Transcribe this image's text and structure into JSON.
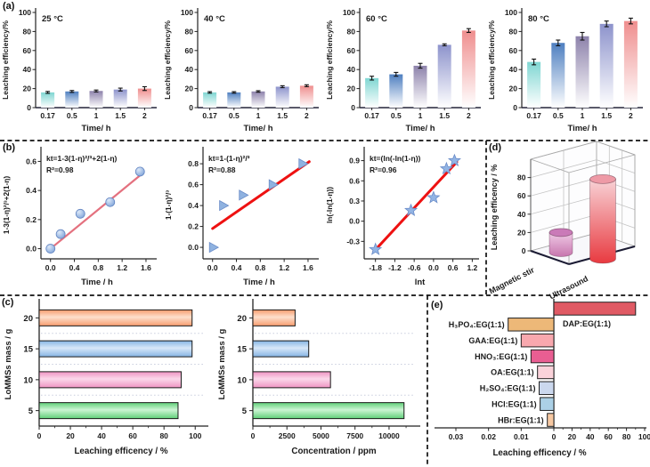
{
  "figure": {
    "panel_labels": {
      "a": "(a)",
      "b": "(b)",
      "c": "(c)",
      "d": "(d)",
      "e": "(e)"
    }
  },
  "chart_data": [
    {
      "panel": "a",
      "type": "bar",
      "render": "vbar",
      "title": "25 °C",
      "xlabel": "Time/ h",
      "ylabel": "Leaching efficiency/%",
      "categories": [
        "0.17",
        "0.5",
        "1",
        "1.5",
        "2"
      ],
      "values": [
        16,
        17,
        17.5,
        19,
        20
      ],
      "errors": [
        1,
        1,
        1,
        1.5,
        2
      ],
      "ylim": [
        0,
        100
      ],
      "yticks": [
        0,
        20,
        40,
        60,
        80,
        100
      ],
      "bar_colors": [
        "#7fd6d2",
        "#4e7fc0",
        "#8d82ab",
        "#8d93cc",
        "#ef8e8e"
      ]
    },
    {
      "panel": "a",
      "type": "bar",
      "render": "vbar",
      "title": "40 °C",
      "xlabel": "Time/ h",
      "ylabel": "Leaching efficiency/%",
      "categories": [
        "0.17",
        "0.5",
        "1",
        "1.5",
        "2"
      ],
      "values": [
        16,
        16,
        17,
        22,
        23
      ],
      "errors": [
        0.8,
        0.8,
        0.8,
        1,
        1
      ],
      "ylim": [
        0,
        100
      ],
      "yticks": [
        0,
        20,
        40,
        60,
        80,
        100
      ],
      "bar_colors": [
        "#7fd6d2",
        "#4e7fc0",
        "#8d82ab",
        "#8d93cc",
        "#ef8e8e"
      ]
    },
    {
      "panel": "a",
      "type": "bar",
      "render": "vbar",
      "title": "60 °C",
      "xlabel": "Time/ h",
      "ylabel": "Leaching efficiency/%",
      "categories": [
        "0.17",
        "0.5",
        "1",
        "1.5",
        "2"
      ],
      "values": [
        31,
        35,
        44,
        66,
        81
      ],
      "errors": [
        2,
        2,
        2.5,
        1,
        2
      ],
      "ylim": [
        0,
        100
      ],
      "yticks": [
        0,
        20,
        40,
        60,
        80,
        100
      ],
      "bar_colors": [
        "#7fd6d2",
        "#4e7fc0",
        "#8d82ab",
        "#8d93cc",
        "#ef8e8e"
      ]
    },
    {
      "panel": "a",
      "type": "bar",
      "render": "vbar",
      "title": "80 °C",
      "xlabel": "Time/ h",
      "ylabel": "Leaching efficiency/%",
      "categories": [
        "0.17",
        "0.5",
        "1",
        "1.5",
        "2"
      ],
      "values": [
        48,
        68,
        75,
        88,
        91
      ],
      "errors": [
        3,
        3,
        4,
        3,
        3
      ],
      "ylim": [
        0,
        100
      ],
      "yticks": [
        0,
        20,
        40,
        60,
        80,
        100
      ],
      "bar_colors": [
        "#7fd6d2",
        "#4e7fc0",
        "#8d82ab",
        "#8d93cc",
        "#ef8e8e"
      ]
    },
    {
      "panel": "b",
      "type": "scatter",
      "render": "scatter",
      "equation": "kt=1-3(1-η)²/³+2(1-η)",
      "r2": "R²=0.98",
      "xlabel": "Time / h",
      "ylabel": "1-3(1-η)²/³+2(1-η)",
      "points": [
        [
          0,
          0
        ],
        [
          0.17,
          0.1
        ],
        [
          0.5,
          0.24
        ],
        [
          1,
          0.32
        ],
        [
          1.5,
          0.53
        ]
      ],
      "fit_line": [
        [
          0,
          0
        ],
        [
          1.55,
          0.52
        ]
      ],
      "xlim": [
        -0.16,
        1.72
      ],
      "ylim": [
        -0.07,
        0.67
      ],
      "xticks": [
        "0.0",
        "0.4",
        "0.8",
        "1.2",
        "1.6"
      ],
      "yticks": [
        "0.0",
        "0.2",
        "0.4",
        "0.6"
      ],
      "marker": "circle",
      "marker_color": "#92b4e4",
      "line_color": "#e4717f"
    },
    {
      "panel": "b",
      "type": "scatter",
      "render": "scatter",
      "equation": "kt=1-(1-η)²/³",
      "r2": "R²=0.88",
      "xlabel": "Time / h",
      "ylabel": "1-(1-η)²/³",
      "points": [
        [
          0,
          0
        ],
        [
          0.17,
          0.4
        ],
        [
          0.5,
          0.5
        ],
        [
          1,
          0.6
        ],
        [
          1.5,
          0.8
        ]
      ],
      "fit_line": [
        [
          0,
          0.18
        ],
        [
          1.62,
          0.82
        ]
      ],
      "xlim": [
        -0.16,
        1.72
      ],
      "ylim": [
        -0.11,
        0.92
      ],
      "xticks": [
        "0.0",
        "0.4",
        "0.8",
        "1.2",
        "1.6"
      ],
      "yticks": [
        "0.0",
        "0.2",
        "0.4",
        "0.6",
        "0.8"
      ],
      "marker": "triangle",
      "marker_color": "#8fb2e0",
      "line_color": "#ee1111"
    },
    {
      "panel": "b",
      "type": "scatter",
      "render": "scatter",
      "equation": "kt=(ln(-ln(1-η))",
      "r2": "R²=0.96",
      "xlabel": "lnt",
      "ylabel": "ln(-ln(1-η))",
      "points": [
        [
          -1.8,
          -0.42
        ],
        [
          -0.7,
          0.16
        ],
        [
          0,
          0.35
        ],
        [
          0.4,
          0.78
        ],
        [
          0.65,
          0.9
        ]
      ],
      "fit_line": [
        [
          -1.85,
          -0.45
        ],
        [
          0.72,
          0.88
        ]
      ],
      "xlim": [
        -2.15,
        1.3
      ],
      "ylim": [
        -0.56,
        1.04
      ],
      "xticks": [
        "-1.8",
        "-1.2",
        "-0.6",
        "0.0",
        "0.6",
        "1.2"
      ],
      "yticks": [
        "-0.3",
        "0.0",
        "0.3",
        "0.6",
        "0.9"
      ],
      "marker": "star",
      "marker_color": "#92b4e4",
      "line_color": "#ee1111"
    },
    {
      "panel": "d",
      "type": "bar",
      "render": "cyl3d",
      "zlabel": "Leaching efficency / %",
      "categories": [
        "Magnetic stir",
        "Ultrasound"
      ],
      "values": [
        22,
        87
      ],
      "zlim": [
        0,
        100
      ],
      "zticks": [
        0,
        20,
        40,
        60,
        80
      ],
      "colors": [
        {
          "top": "#ca7ab8",
          "body_top": "#f0cae6",
          "body_bottom": "#c776ae"
        },
        {
          "top": "#ee9aa6",
          "body_top": "#f8d2d6",
          "body_bottom": "#e83a40"
        }
      ]
    },
    {
      "panel": "c",
      "type": "bar",
      "render": "hbar",
      "xlabel": "Leaching efficency / %",
      "ylabel": "LoMMSs mass / g",
      "categories": [
        "5",
        "10",
        "15",
        "20"
      ],
      "values": [
        89,
        91,
        98,
        98
      ],
      "xlim": [
        0,
        105
      ],
      "xticks": [
        0,
        20,
        40,
        60,
        80,
        100
      ],
      "minor_step": 10,
      "bar_colors": [
        {
          "base": "#5fcf78",
          "light": "#ccf4d4"
        },
        {
          "base": "#ef93c2",
          "light": "#fbd8ea"
        },
        {
          "base": "#85b4e4",
          "light": "#d8e8f8"
        },
        {
          "base": "#f79c6e",
          "light": "#fde0cd"
        }
      ]
    },
    {
      "panel": "c",
      "type": "bar",
      "render": "hbar",
      "xlabel": "Concentration / ppm",
      "ylabel": "LoMMSs mass / g",
      "categories": [
        "5",
        "10",
        "15",
        "20"
      ],
      "values": [
        11100,
        5700,
        4100,
        3100
      ],
      "xlim": [
        0,
        11900
      ],
      "xticks": [
        0,
        2500,
        5000,
        7500,
        10000
      ],
      "minor_step": 1250,
      "bar_colors": [
        {
          "base": "#5fcf78",
          "light": "#ccf4d4"
        },
        {
          "base": "#ef93c2",
          "light": "#fbd8ea"
        },
        {
          "base": "#85b4e4",
          "light": "#d8e8f8"
        },
        {
          "base": "#f79c6e",
          "light": "#fde0cd"
        }
      ]
    },
    {
      "panel": "e",
      "type": "bar",
      "render": "diverge",
      "xlabel": "Leaching efficency / %",
      "zero_label": "0",
      "left_axis": {
        "max": 0.03,
        "ticks": [
          "0.03",
          "0.02",
          "0.01"
        ]
      },
      "right_axis": {
        "max": 100,
        "ticks": [
          20,
          40,
          60,
          80,
          100
        ],
        "minor_step": 10
      },
      "rows": [
        {
          "label": "DAP:EG(1:1)",
          "side": "right",
          "value": 90,
          "color": "#e05a64"
        },
        {
          "label": "H₃PO₄:EG(1:1)",
          "side": "left",
          "value": 0.014,
          "color": "#edb878"
        },
        {
          "label": "GAA:EG(1:1)",
          "side": "left",
          "value": 0.01,
          "color": "#f8a8ae"
        },
        {
          "label": "HNO₃:EG(1:1)",
          "side": "left",
          "value": 0.007,
          "color": "#e95e92"
        },
        {
          "label": "OA:EG(1:1)",
          "side": "left",
          "value": 0.005,
          "color": "#fad2da"
        },
        {
          "label": "H₂SO₄:EG(1:1)",
          "side": "left",
          "value": 0.0045,
          "color": "#cbd8ee"
        },
        {
          "label": "HCl:EG(1:1)",
          "side": "left",
          "value": 0.0042,
          "color": "#abd0e6"
        },
        {
          "label": "HBr:EG(1:1)",
          "side": "left",
          "value": 0.002,
          "color": "#f6c8a2"
        }
      ]
    }
  ]
}
